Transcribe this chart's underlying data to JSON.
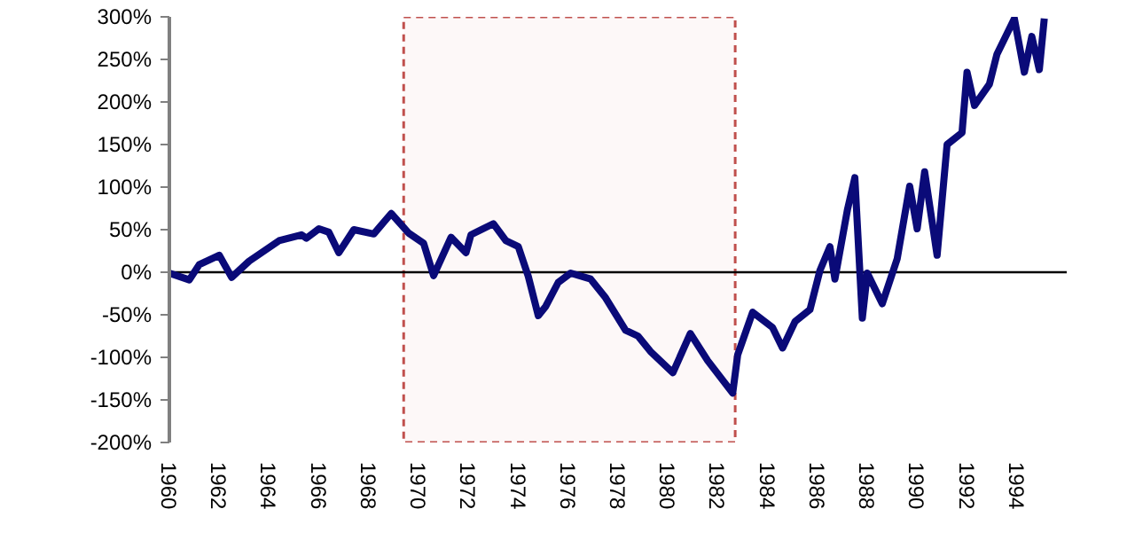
{
  "chart_data": {
    "type": "line",
    "x": [
      1960.0,
      1960.8,
      1961.2,
      1962.0,
      1962.5,
      1963.2,
      1964.4,
      1965.3,
      1965.5,
      1966.0,
      1966.4,
      1966.8,
      1967.4,
      1968.2,
      1968.9,
      1969.6,
      1970.2,
      1970.6,
      1971.3,
      1971.9,
      1972.1,
      1973.0,
      1973.5,
      1974.0,
      1974.4,
      1974.8,
      1975.1,
      1975.6,
      1976.1,
      1976.9,
      1977.5,
      1978.3,
      1978.8,
      1979.3,
      1980.2,
      1980.9,
      1981.6,
      1982.6,
      1982.8,
      1983.4,
      1984.2,
      1984.6,
      1985.1,
      1985.7,
      1986.1,
      1986.5,
      1986.7,
      1987.2,
      1987.5,
      1987.8,
      1988.0,
      1988.6,
      1989.2,
      1989.7,
      1990.0,
      1990.3,
      1990.8,
      1991.2,
      1991.8,
      1992.0,
      1992.3,
      1992.9,
      1993.2,
      1993.9,
      1994.3,
      1994.6,
      1994.9,
      1995.1
    ],
    "series": [
      {
        "color": "#0a0a78",
        "values": [
          -1,
          -9,
          9,
          20,
          -6,
          13,
          37,
          44,
          40,
          51,
          47,
          23,
          50,
          45,
          69,
          46,
          34,
          -4,
          41,
          23,
          44,
          57,
          37,
          30,
          -5,
          -51,
          -40,
          -12,
          -1,
          -8,
          -30,
          -68,
          -75,
          -93,
          -118,
          -72,
          -104,
          -142,
          -97,
          -47,
          -65,
          -89,
          -58,
          -44,
          2,
          30,
          -8,
          73,
          111,
          -54,
          -1,
          -37,
          16,
          101,
          51,
          118,
          20,
          150,
          164,
          235,
          196,
          221,
          256,
          298,
          235,
          277,
          238,
          298
        ]
      }
    ],
    "xlim": [
      1960,
      1996
    ],
    "xticks": [
      1960,
      1962,
      1964,
      1966,
      1968,
      1970,
      1972,
      1974,
      1976,
      1978,
      1980,
      1982,
      1984,
      1986,
      1988,
      1990,
      1992,
      1994
    ],
    "ylim": [
      -200,
      300
    ],
    "yticks": [
      {
        "value": -200,
        "label": "-200%"
      },
      {
        "value": -150,
        "label": "-150%"
      },
      {
        "value": -100,
        "label": "-100%"
      },
      {
        "value": -50,
        "label": "-50%"
      },
      {
        "value": 0,
        "label": "0%"
      },
      {
        "value": 50,
        "label": "50%"
      },
      {
        "value": 100,
        "label": "100%"
      },
      {
        "value": 150,
        "label": "150%"
      },
      {
        "value": 200,
        "label": "200%"
      },
      {
        "value": 250,
        "label": "250%"
      },
      {
        "value": 300,
        "label": "300%"
      }
    ],
    "ref_lines": [
      {
        "axis": "y",
        "value": 0,
        "color": "#000000",
        "line_style": "solid"
      }
    ],
    "bands": [
      {
        "axis": "x",
        "from": 1969.4,
        "to": 1982.7,
        "color": "#c0504d"
      }
    ],
    "grid": false,
    "line_style": "solid",
    "marker": "none"
  }
}
